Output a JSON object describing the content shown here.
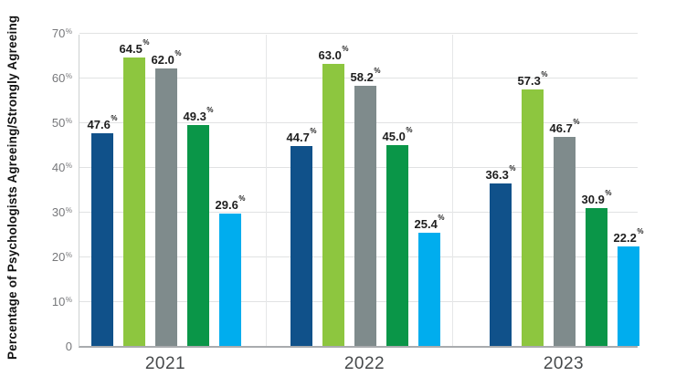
{
  "chart_data": {
    "type": "bar",
    "title": "",
    "xlabel": "",
    "ylabel": "Percentage of Psychologists Agreeing/Strongly Agreeing",
    "ylim": [
      0,
      70
    ],
    "grid": true,
    "legend": "none",
    "categories": [
      "2021",
      "2022",
      "2023"
    ],
    "series": [
      {
        "name": "series-dark-blue",
        "color": "#10518a",
        "values": [
          47.6,
          44.7,
          36.3
        ],
        "labels": [
          "47.6%",
          "44.7%",
          "36.3%"
        ]
      },
      {
        "name": "series-light-green",
        "color": "#8dc63f",
        "values": [
          64.5,
          63.0,
          57.3
        ],
        "labels": [
          "64.5%",
          "63.0%",
          "57.3%"
        ]
      },
      {
        "name": "series-gray",
        "color": "#7f8b8c",
        "values": [
          62.0,
          58.2,
          46.7
        ],
        "labels": [
          "62.0%",
          "58.2%",
          "46.7%"
        ]
      },
      {
        "name": "series-green",
        "color": "#0a9648",
        "values": [
          49.3,
          45.0,
          30.9
        ],
        "labels": [
          "49.3%",
          "45.0%",
          "30.9%"
        ]
      },
      {
        "name": "series-light-blue",
        "color": "#00adee",
        "values": [
          29.6,
          25.4,
          22.2
        ],
        "labels": [
          "29.6%",
          "25.4%",
          "22.2%"
        ]
      }
    ],
    "y_ticks": [
      {
        "label": "70%",
        "value": 70
      },
      {
        "label": "60%",
        "value": 60
      },
      {
        "label": "50%",
        "value": 50
      },
      {
        "label": "40%",
        "value": 40
      },
      {
        "label": "30%",
        "value": 30
      },
      {
        "label": "20%",
        "value": 20
      },
      {
        "label": "10%",
        "value": 10
      },
      {
        "label": "0",
        "value": 0
      }
    ]
  },
  "colors": {
    "gridline": "#e1e2e3",
    "axis_line": "#a9abae",
    "tick_text": "#77787b",
    "category_text": "#46494b",
    "value_text": "#1e1e1e"
  }
}
